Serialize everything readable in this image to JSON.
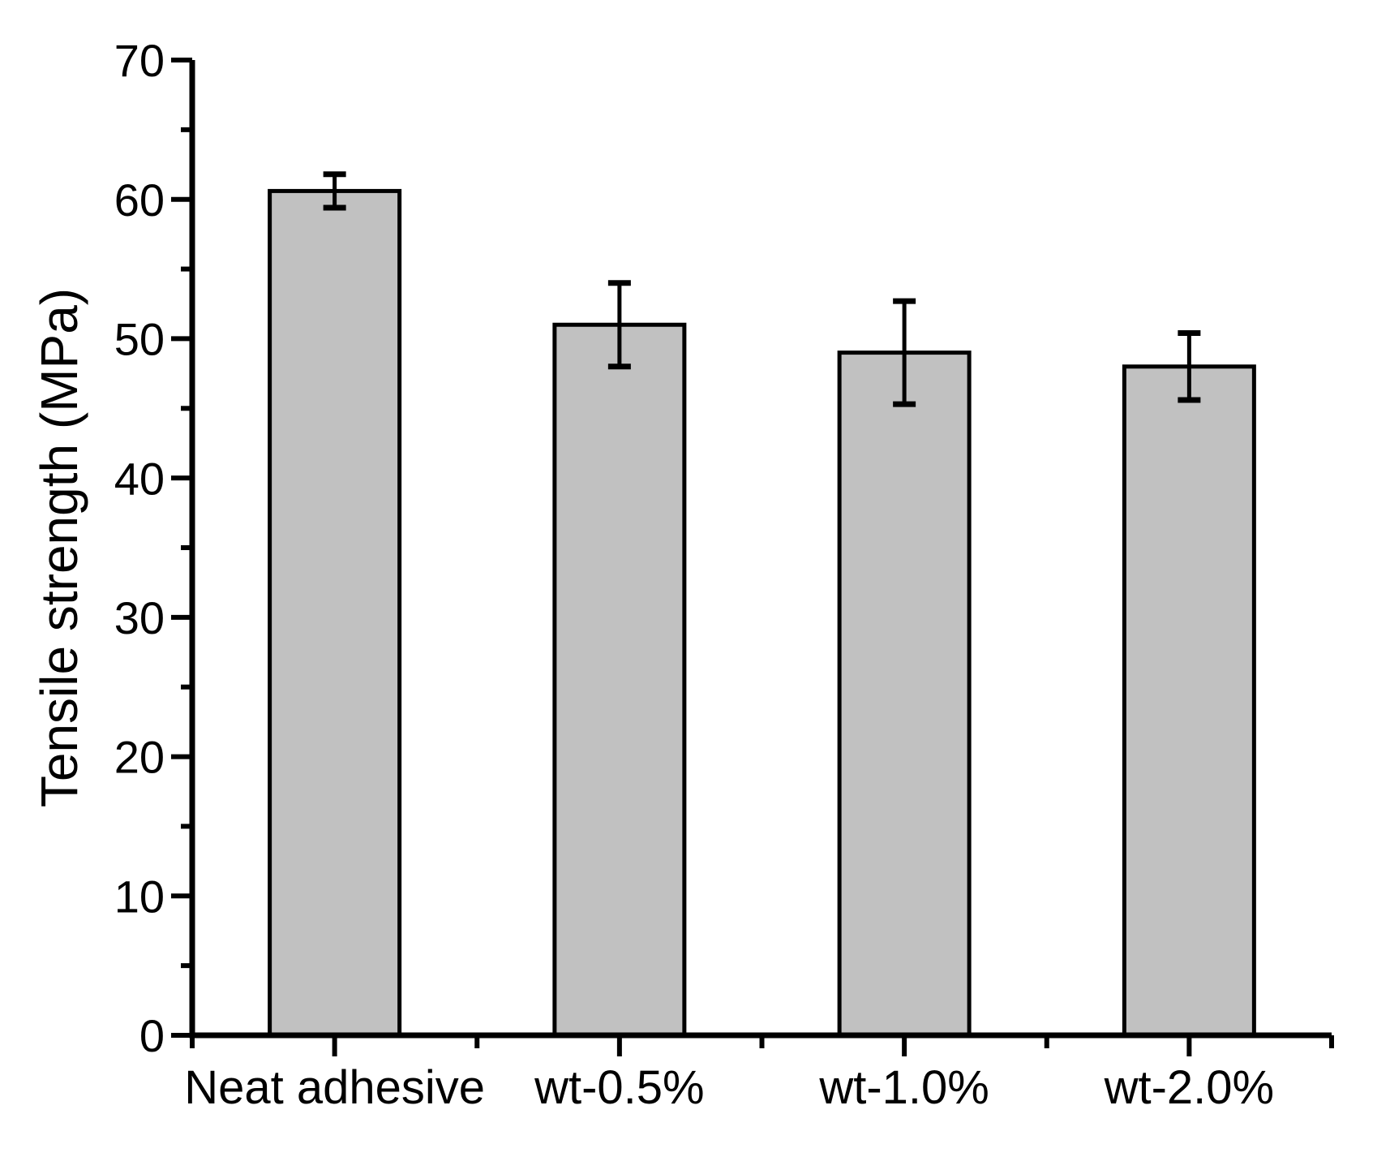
{
  "figure": {
    "background": "#ffffff"
  },
  "chart_data": {
    "type": "bar",
    "title": "",
    "categories": [
      "Neat adhesive",
      "wt-0.5%",
      "wt-1.0%",
      "wt-2.0%"
    ],
    "values": [
      60.6,
      51.0,
      49.0,
      48.0
    ],
    "errors": [
      1.2,
      3.0,
      3.7,
      2.4
    ],
    "xlabel": "",
    "ylabel": "Tensile strength (MPa)",
    "ylim": [
      0,
      70
    ],
    "ytick_major_interval": 10,
    "ytick_minor_interval": 5,
    "ytick_labels": [
      "0",
      "10",
      "20",
      "30",
      "40",
      "50",
      "60",
      "70"
    ],
    "grid": false,
    "legend": null,
    "bar_fill_color": "#c1c1c1",
    "bar_outline_color": "#000000",
    "error_bar_color": "#000000",
    "axis_color": "#000000",
    "text_color": "#000000"
  }
}
